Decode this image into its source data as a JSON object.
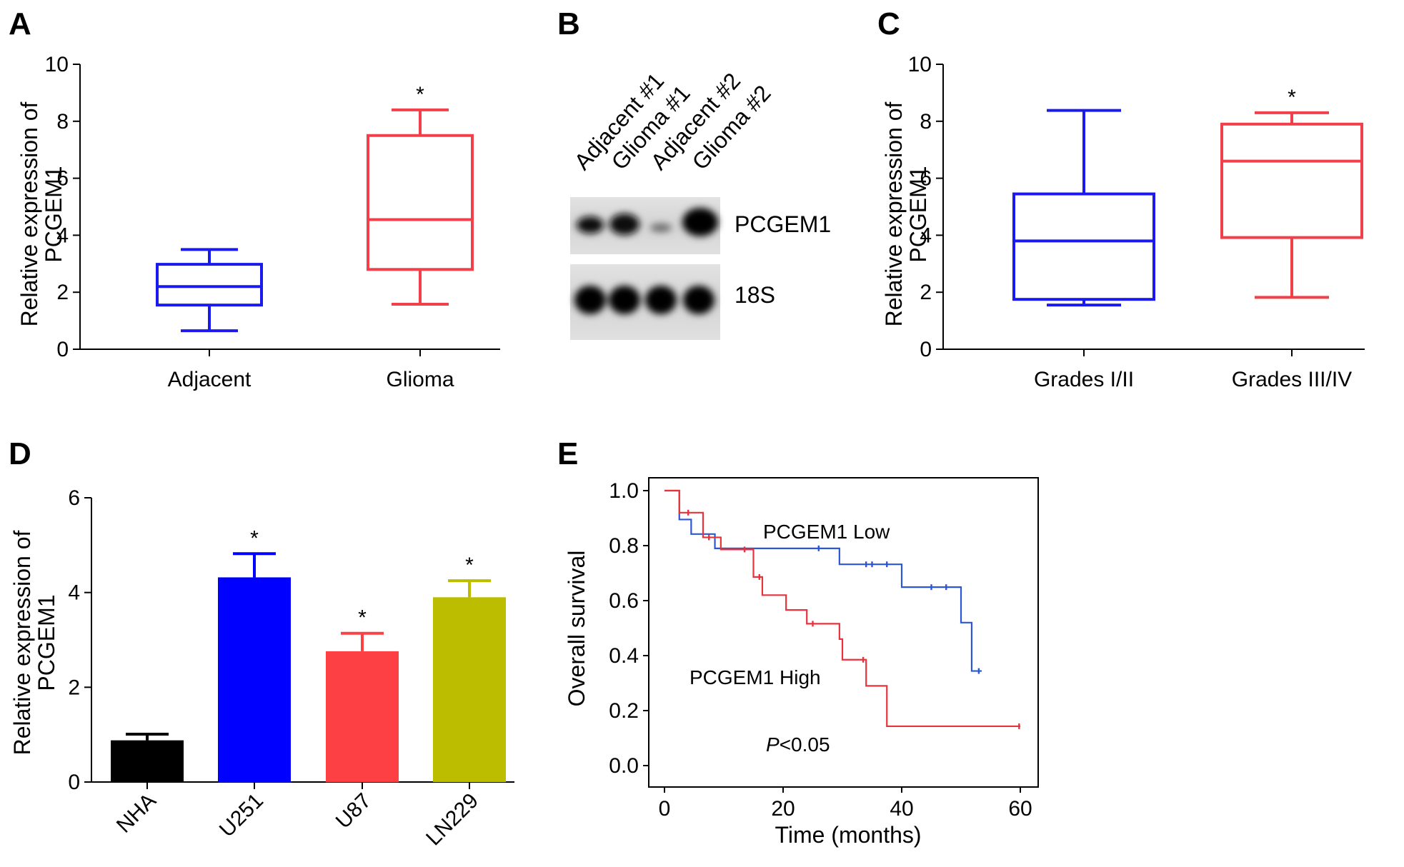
{
  "panels": {
    "A": "A",
    "B": "B",
    "C": "C",
    "D": "D",
    "E": "E"
  },
  "colors": {
    "blue": "#1a1aee",
    "red": "#f2404a",
    "black": "#000000",
    "olive": "#bdbd00",
    "red_bar": "#fc4044",
    "km_red": "#e8333d",
    "km_blue": "#2b56d8"
  },
  "blot": {
    "lanes": [
      "Adjacent #1",
      "Glioma #1",
      "Adjacent #2",
      "Glioma #2"
    ],
    "bands": [
      "PCGEM1",
      "18S"
    ]
  },
  "chart_data": [
    {
      "panel": "A",
      "type": "box",
      "ylabel_line1": "Relative expression of",
      "ylabel_line2": "PCGEM1",
      "ylim": [
        0,
        10
      ],
      "yticks": [
        "0",
        "2",
        "4",
        "6",
        "8",
        "10"
      ],
      "categories": [
        "Adjacent",
        "Glioma"
      ],
      "boxes": [
        {
          "name": "Adjacent",
          "min": 0.65,
          "q1": 1.55,
          "median": 2.2,
          "q3": 2.98,
          "max": 3.5,
          "color": "#1a1aee",
          "star": ""
        },
        {
          "name": "Glioma",
          "min": 1.58,
          "q1": 2.8,
          "median": 4.55,
          "q3": 7.5,
          "max": 8.4,
          "color": "#f2404a",
          "star": "*"
        }
      ]
    },
    {
      "panel": "C",
      "type": "box",
      "ylabel_line1": "Relative expression of",
      "ylabel_line2": "PCGEM1",
      "ylim": [
        0,
        10
      ],
      "yticks": [
        "0",
        "2",
        "4",
        "6",
        "8",
        "10"
      ],
      "categories": [
        "Grades I/II",
        "Grades III/IV"
      ],
      "boxes": [
        {
          "name": "Grades I/II",
          "min": 1.55,
          "q1": 1.75,
          "median": 3.8,
          "q3": 5.45,
          "max": 8.38,
          "color": "#1a1aee",
          "star": ""
        },
        {
          "name": "Grades III/IV",
          "min": 1.82,
          "q1": 3.92,
          "median": 6.6,
          "q3": 7.9,
          "max": 8.3,
          "color": "#f2404a",
          "star": "*"
        }
      ]
    },
    {
      "panel": "D",
      "type": "bar",
      "ylabel_line1": "Relative expression of",
      "ylabel_line2": "PCGEM1",
      "ylim": [
        0,
        6
      ],
      "yticks": [
        "0",
        "2",
        "4",
        "6"
      ],
      "categories": [
        "NHA",
        "U251",
        "U87",
        "LN229"
      ],
      "values": [
        0.88,
        4.32,
        2.76,
        3.9
      ],
      "errors": [
        0.13,
        0.5,
        0.38,
        0.35
      ],
      "colors": [
        "#000000",
        "#0000ff",
        "#fc4044",
        "#bdbd00"
      ],
      "stars": [
        "",
        "*",
        "*",
        "*"
      ]
    },
    {
      "panel": "E",
      "type": "line",
      "xlabel": "Time (months)",
      "ylabel": "Overall survival",
      "xlim": [
        0,
        60
      ],
      "ylim": [
        0,
        1
      ],
      "xticks": [
        "0",
        "20",
        "40",
        "60"
      ],
      "yticks": [
        "0.0",
        "0.2",
        "0.4",
        "0.6",
        "0.8",
        "1.0"
      ],
      "series": [
        {
          "name": "PCGEM1 Low",
          "color": "#2b56d8",
          "steps": [
            [
              0,
              1.0
            ],
            [
              2.5,
              0.895
            ],
            [
              4.5,
              0.842
            ],
            [
              8.5,
              0.79
            ],
            [
              29.5,
              0.732
            ],
            [
              40,
              0.649
            ],
            [
              50,
              0.52
            ],
            [
              51.8,
              0.344
            ],
            [
              53.5,
              0.344
            ]
          ],
          "censors": [
            [
              26,
              0.79
            ],
            [
              34,
              0.732
            ],
            [
              35,
              0.732
            ],
            [
              37.5,
              0.732
            ],
            [
              45,
              0.649
            ],
            [
              47.5,
              0.649
            ],
            [
              53,
              0.344
            ]
          ]
        },
        {
          "name": "PCGEM1 High",
          "color": "#e8333d",
          "steps": [
            [
              0,
              1.0
            ],
            [
              2.5,
              0.92
            ],
            [
              6.5,
              0.83
            ],
            [
              9.5,
              0.786
            ],
            [
              15,
              0.686
            ],
            [
              16.5,
              0.62
            ],
            [
              20.5,
              0.566
            ],
            [
              24,
              0.516
            ],
            [
              29.5,
              0.46
            ],
            [
              30,
              0.385
            ],
            [
              34,
              0.29
            ],
            [
              37.5,
              0.143
            ],
            [
              60,
              0.143
            ]
          ],
          "censors": [
            [
              4,
              0.92
            ],
            [
              7.5,
              0.83
            ],
            [
              13.5,
              0.786
            ],
            [
              16,
              0.686
            ],
            [
              25,
              0.516
            ],
            [
              33.5,
              0.385
            ],
            [
              59.8,
              0.143
            ]
          ]
        }
      ],
      "pvalue_prefix": "P",
      "pvalue_rest": "<0.05"
    }
  ]
}
